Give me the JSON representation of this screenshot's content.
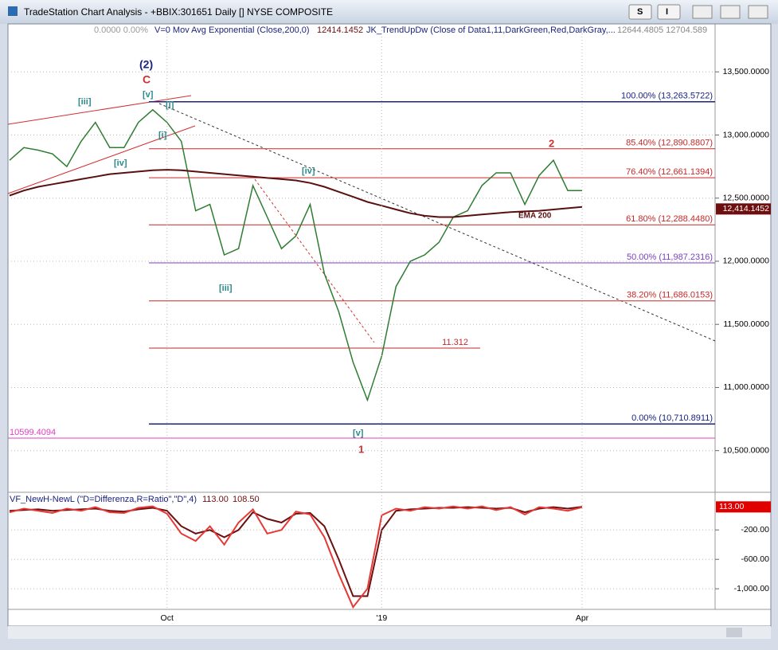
{
  "window": {
    "title": "TradeStation Chart Analysis - +BBIX:301651 Daily [] NYSE COMPOSITE",
    "buttons": [
      "S",
      "I"
    ]
  },
  "chart_data": [
    {
      "type": "line",
      "info": [
        "0.0000  0.00%",
        "V=0  Mov Avg Exponential (Close,200,0)",
        "12414.1452",
        "JK_TrendUpDw (Close of Data1,11,DarkGreen,Red,DarkGray,...",
        "12644.4805  12704.589"
      ],
      "categories": [
        null,
        null,
        null,
        null,
        null,
        null,
        null,
        null,
        null,
        null,
        null,
        "Oct",
        null,
        null,
        null,
        null,
        null,
        null,
        null,
        null,
        null,
        null,
        null,
        null,
        null,
        null,
        "'19",
        null,
        null,
        null,
        null,
        null,
        null,
        null,
        null,
        null,
        null,
        null,
        null,
        null,
        "Apr"
      ],
      "series": [
        {
          "color": "#2e7d32",
          "values": [
            12800,
            12900,
            12880,
            12850,
            12750,
            12950,
            13100,
            12900,
            12900,
            13100,
            13200,
            13100,
            12950,
            12400,
            12450,
            12050,
            12100,
            12600,
            12350,
            12100,
            12200,
            12450,
            11900,
            11600,
            11200,
            10900,
            11250,
            11800,
            12000,
            12050,
            12150,
            12350,
            12400,
            12600,
            12700,
            12700,
            12450,
            12680,
            12800,
            12560,
            12560
          ]
        },
        {
          "name": "EMA 200",
          "color": "#5a1010",
          "values": [
            12520,
            12560,
            12590,
            12610,
            12630,
            12650,
            12670,
            12690,
            12700,
            12710,
            12720,
            12725,
            12720,
            12710,
            12700,
            12690,
            12680,
            12670,
            12660,
            12650,
            12640,
            12620,
            12590,
            12550,
            12510,
            12470,
            12440,
            12410,
            12380,
            12360,
            12350,
            12350,
            12360,
            12370,
            12380,
            12390,
            12395,
            12400,
            12410,
            12420,
            12430
          ]
        }
      ],
      "ylim": [
        10170,
        13880
      ],
      "yticks": [
        {
          "value": 10500,
          "label": "10,500.0000"
        },
        {
          "value": 11000,
          "label": "11,000.0000"
        },
        {
          "value": 11500,
          "label": "11,500.0000"
        },
        {
          "value": 12000,
          "label": "12,000.0000"
        },
        {
          "value": 12500,
          "label": "12,500.0000"
        },
        {
          "value": 13000,
          "label": "13,000.0000"
        },
        {
          "value": 13500,
          "label": "13,500.0000"
        }
      ],
      "last_price": {
        "value": 12414.1452,
        "label": "12,414.1452"
      },
      "levels": [
        {
          "label": "100.00% (13,263.5722)",
          "value": 13263.5722,
          "color": "#1a237e"
        },
        {
          "label": "85.40% (12,890.8807)",
          "value": 12890.8807,
          "color": "#c62828"
        },
        {
          "label": "76.40% (12,661.1394)",
          "value": 12661.1394,
          "color": "#c62828"
        },
        {
          "label": "61.80% (12,288.4480)",
          "value": 12288.448,
          "color": "#c62828"
        },
        {
          "label": "50.00% (11,987.2316)",
          "value": 11987.2316,
          "color": "#7b3fbf"
        },
        {
          "label": "38.20% (11,686.0153)",
          "value": 11686.0153,
          "color": "#c62828"
        },
        {
          "label": "0.00% (10,710.8911)",
          "value": 10710.8911,
          "color": "#1a237e"
        },
        {
          "label": "11.312",
          "value": 11312,
          "color": "#c62828"
        },
        {
          "label": "10599.4094",
          "value": 10599.4094,
          "color": "#e040c0"
        }
      ],
      "wave_labels": [
        "(2)",
        "C",
        "[iii]",
        "[v]",
        "[i]",
        "[i]",
        "[iv]",
        "[iv]",
        "[iii]",
        "[v]",
        "1",
        "2"
      ]
    },
    {
      "type": "line",
      "title": "VF_NewH-NewL (\"D=Differenza,R=Ratio\",\"D\",4)",
      "readouts": [
        "113.00",
        "108.50"
      ],
      "series": [
        {
          "color": "#6d0f0f",
          "values": [
            60,
            70,
            80,
            60,
            70,
            80,
            90,
            60,
            50,
            80,
            100,
            60,
            -150,
            -250,
            -200,
            -300,
            -200,
            40,
            -50,
            -100,
            20,
            30,
            -150,
            -600,
            -1100,
            -1100,
            -200,
            60,
            80,
            90,
            100,
            100,
            110,
            100,
            90,
            100,
            40,
            90,
            110,
            90,
            113
          ]
        },
        {
          "color": "#e53935",
          "values": [
            40,
            90,
            60,
            30,
            90,
            60,
            110,
            40,
            30,
            100,
            120,
            20,
            -250,
            -350,
            -150,
            -400,
            -100,
            80,
            -250,
            -200,
            50,
            10,
            -300,
            -800,
            -1250,
            -1000,
            0,
            90,
            60,
            110,
            90,
            120,
            90,
            120,
            70,
            110,
            10,
            110,
            90,
            60,
            108.5
          ]
        }
      ],
      "ylim": [
        -1280,
        290
      ],
      "yticks": [
        {
          "value": -200,
          "label": "-200.00"
        },
        {
          "value": -600,
          "label": "-600.00"
        },
        {
          "value": -1000,
          "label": "-1,000.00"
        }
      ]
    }
  ]
}
